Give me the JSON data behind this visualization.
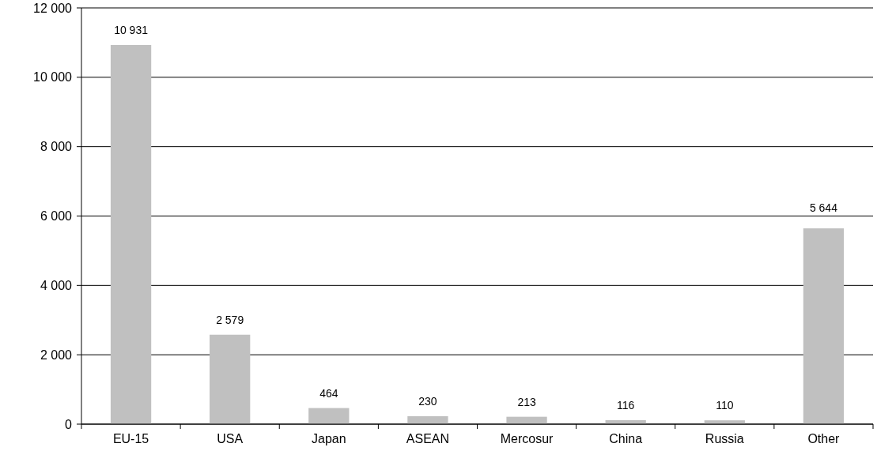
{
  "chart_data": {
    "type": "bar",
    "categories": [
      "EU-15",
      "USA",
      "Japan",
      "ASEAN",
      "Mercosur",
      "China",
      "Russia",
      "Other"
    ],
    "values": [
      10931,
      2579,
      464,
      230,
      213,
      116,
      110,
      5644
    ],
    "value_labels": [
      "10 931",
      "2 579",
      "464",
      "230",
      "213",
      "116",
      "110",
      "5 644"
    ],
    "color": "#c0c0c0",
    "ylim": [
      0,
      12000
    ],
    "yticks": [
      0,
      {
        "value": 2000,
        "label": "2 000"
      },
      {
        "value": 4000,
        "label": "4 000"
      },
      {
        "value": 6000,
        "label": "6 000"
      },
      {
        "value": 8000,
        "label": "8 000"
      },
      {
        "value": 10000,
        "label": "10 000"
      },
      {
        "value": 12000,
        "label": "12 000"
      }
    ],
    "grid": "y"
  }
}
